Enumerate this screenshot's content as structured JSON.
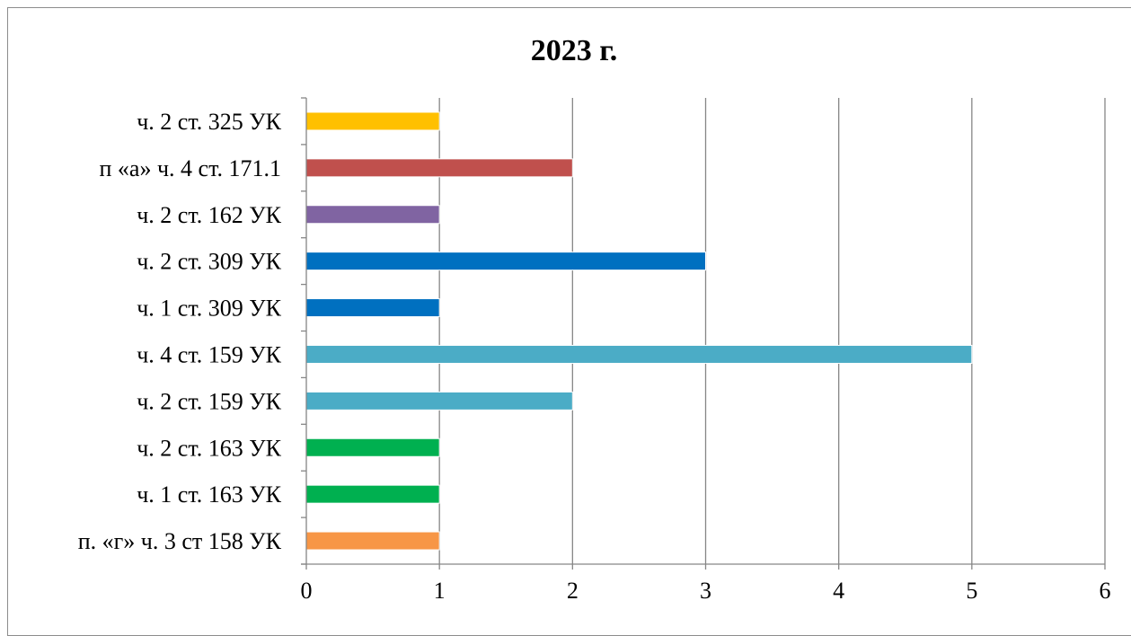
{
  "chart_data": {
    "type": "bar",
    "orientation": "horizontal",
    "title": "2023 г.",
    "categories": [
      "п. «г» ч. 3 ст 158 УК",
      "ч. 1 ст. 163 УК",
      "ч. 2 ст. 163 УК",
      "ч. 2 ст. 159 УК",
      "ч. 4 ст. 159 УК",
      "ч. 1 ст. 309 УК",
      "ч. 2 ст. 309 УК",
      "ч. 2 ст. 162 УК",
      "п «а» ч. 4 ст. 171.1",
      "ч. 2 ст. 325 УК"
    ],
    "values": [
      1,
      1,
      1,
      2,
      5,
      1,
      3,
      1,
      2,
      1
    ],
    "colors": [
      "#f79646",
      "#00b050",
      "#00b050",
      "#4bacc6",
      "#4bacc6",
      "#0070c0",
      "#0070c0",
      "#8064a2",
      "#c0504d",
      "#ffc000"
    ],
    "xlim": [
      0,
      6
    ],
    "xticks": [
      0,
      1,
      2,
      3,
      4,
      5,
      6
    ],
    "xlabel": "",
    "ylabel": "",
    "grid": true,
    "legend": "none"
  }
}
